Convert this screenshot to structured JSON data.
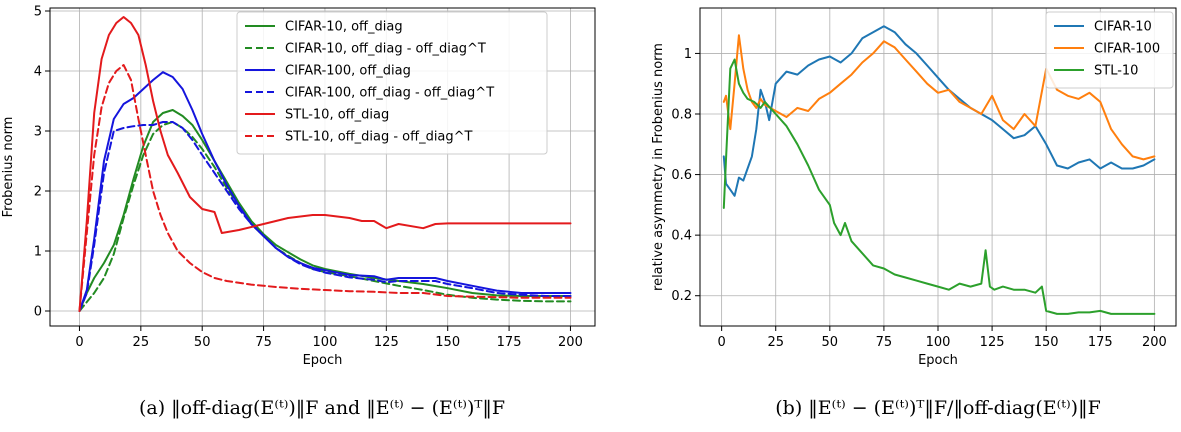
{
  "chart_data": [
    {
      "type": "line",
      "xlabel": "Epoch",
      "ylabel": "Frobenius norm",
      "xlim": [
        -12,
        210
      ],
      "ylim": [
        -0.25,
        5.05
      ],
      "xticks": [
        0,
        25,
        50,
        75,
        100,
        125,
        150,
        175,
        200
      ],
      "yticks": [
        0,
        1,
        2,
        3,
        4,
        5
      ],
      "grid": true,
      "legend_position": "top-right",
      "caption": "(a) ‖off-diag(E⁽ᵗ⁾)‖F and ‖E⁽ᵗ⁾ − (E⁽ᵗ⁾)ᵀ‖F",
      "series": [
        {
          "name": "CIFAR-10, off_diag",
          "color": "#228B22",
          "dash": "solid",
          "x": [
            0,
            3,
            6,
            10,
            14,
            18,
            22,
            26,
            30,
            34,
            38,
            42,
            46,
            50,
            55,
            60,
            65,
            70,
            75,
            80,
            85,
            90,
            95,
            100,
            110,
            120,
            130,
            140,
            150,
            160,
            170,
            180,
            190,
            200
          ],
          "y": [
            0.0,
            0.3,
            0.55,
            0.8,
            1.1,
            1.6,
            2.2,
            2.75,
            3.15,
            3.3,
            3.35,
            3.25,
            3.1,
            2.85,
            2.5,
            2.15,
            1.8,
            1.5,
            1.28,
            1.1,
            0.98,
            0.86,
            0.76,
            0.7,
            0.62,
            0.55,
            0.5,
            0.45,
            0.38,
            0.3,
            0.26,
            0.25,
            0.25,
            0.25
          ]
        },
        {
          "name": "CIFAR-10, off_diag - off_diag^T",
          "color": "#228B22",
          "dash": "dashed",
          "x": [
            0,
            3,
            6,
            10,
            14,
            18,
            22,
            26,
            30,
            34,
            38,
            42,
            46,
            50,
            55,
            60,
            65,
            70,
            75,
            80,
            85,
            90,
            95,
            100,
            110,
            120,
            130,
            140,
            150,
            160,
            170,
            180,
            190,
            200
          ],
          "y": [
            0.0,
            0.15,
            0.3,
            0.55,
            0.95,
            1.55,
            2.1,
            2.6,
            2.95,
            3.1,
            3.15,
            3.05,
            2.9,
            2.7,
            2.4,
            2.05,
            1.75,
            1.45,
            1.25,
            1.05,
            0.92,
            0.8,
            0.7,
            0.65,
            0.58,
            0.5,
            0.42,
            0.35,
            0.27,
            0.22,
            0.19,
            0.17,
            0.16,
            0.16
          ]
        },
        {
          "name": "CIFAR-100, off_diag",
          "color": "#1515DD",
          "dash": "solid",
          "x": [
            0,
            3,
            6,
            10,
            14,
            18,
            22,
            26,
            30,
            34,
            38,
            42,
            46,
            50,
            55,
            60,
            65,
            70,
            75,
            80,
            85,
            90,
            95,
            100,
            110,
            120,
            125,
            130,
            140,
            145,
            150,
            160,
            170,
            180,
            190,
            200
          ],
          "y": [
            0.0,
            0.35,
            1.2,
            2.5,
            3.2,
            3.45,
            3.55,
            3.7,
            3.85,
            3.98,
            3.9,
            3.7,
            3.35,
            2.95,
            2.5,
            2.1,
            1.75,
            1.45,
            1.25,
            1.05,
            0.9,
            0.8,
            0.72,
            0.68,
            0.6,
            0.58,
            0.52,
            0.55,
            0.55,
            0.55,
            0.5,
            0.42,
            0.34,
            0.3,
            0.3,
            0.3
          ]
        },
        {
          "name": "CIFAR-100, off_diag - off_diag^T",
          "color": "#1515DD",
          "dash": "dashed",
          "x": [
            0,
            3,
            6,
            10,
            14,
            18,
            22,
            26,
            30,
            34,
            38,
            42,
            46,
            50,
            55,
            60,
            65,
            70,
            75,
            80,
            85,
            90,
            95,
            100,
            110,
            120,
            125,
            130,
            140,
            145,
            150,
            160,
            170,
            180,
            190,
            200
          ],
          "y": [
            0.0,
            0.3,
            1.1,
            2.3,
            3.0,
            3.05,
            3.08,
            3.1,
            3.1,
            3.15,
            3.15,
            3.05,
            2.85,
            2.6,
            2.3,
            2.0,
            1.7,
            1.45,
            1.25,
            1.05,
            0.9,
            0.78,
            0.7,
            0.64,
            0.56,
            0.52,
            0.48,
            0.5,
            0.5,
            0.5,
            0.45,
            0.38,
            0.3,
            0.27,
            0.25,
            0.25
          ]
        },
        {
          "name": "STL-10, off_diag",
          "color": "#E31A1C",
          "dash": "solid",
          "x": [
            0,
            3,
            6,
            9,
            12,
            15,
            18,
            21,
            24,
            27,
            30,
            33,
            36,
            40,
            45,
            50,
            55,
            58,
            65,
            75,
            85,
            95,
            100,
            110,
            115,
            120,
            125,
            130,
            140,
            145,
            150,
            160,
            170,
            180,
            190,
            200
          ],
          "y": [
            0.0,
            1.5,
            3.3,
            4.2,
            4.6,
            4.8,
            4.9,
            4.8,
            4.6,
            4.1,
            3.5,
            3.0,
            2.6,
            2.3,
            1.9,
            1.7,
            1.65,
            1.3,
            1.35,
            1.45,
            1.55,
            1.6,
            1.6,
            1.55,
            1.5,
            1.5,
            1.38,
            1.45,
            1.38,
            1.45,
            1.46,
            1.46,
            1.46,
            1.46,
            1.46,
            1.46
          ]
        },
        {
          "name": "STL-10, off_diag - off_diag^T",
          "color": "#E31A1C",
          "dash": "dashed",
          "x": [
            0,
            3,
            6,
            9,
            12,
            15,
            18,
            21,
            24,
            27,
            30,
            33,
            36,
            40,
            45,
            50,
            55,
            60,
            70,
            80,
            90,
            100,
            110,
            120,
            130,
            140,
            150,
            160,
            170,
            180,
            190,
            200
          ],
          "y": [
            0.0,
            1.3,
            2.6,
            3.4,
            3.8,
            4.0,
            4.1,
            3.85,
            3.2,
            2.6,
            2.0,
            1.6,
            1.3,
            1.0,
            0.8,
            0.65,
            0.55,
            0.5,
            0.44,
            0.4,
            0.37,
            0.35,
            0.33,
            0.32,
            0.3,
            0.3,
            0.25,
            0.24,
            0.23,
            0.22,
            0.22,
            0.22
          ]
        }
      ]
    },
    {
      "type": "line",
      "xlabel": "Epoch",
      "ylabel": "relative asymmetry in Frobenius norm",
      "xlim": [
        -10,
        210
      ],
      "ylim": [
        0.1,
        1.15
      ],
      "xticks": [
        0,
        25,
        50,
        75,
        100,
        125,
        150,
        175,
        200
      ],
      "yticks": [
        0.2,
        0.4,
        0.6,
        0.8,
        1.0
      ],
      "grid": true,
      "legend_position": "top-right",
      "caption": "(b) ‖E⁽ᵗ⁾ − (E⁽ᵗ⁾)ᵀ‖F/‖off-diag(E⁽ᵗ⁾)‖F",
      "series": [
        {
          "name": "CIFAR-10",
          "color": "#1f77b4",
          "dash": "solid",
          "x": [
            1,
            2,
            4,
            6,
            8,
            10,
            12,
            14,
            16,
            18,
            20,
            22,
            25,
            30,
            35,
            40,
            45,
            50,
            55,
            60,
            65,
            70,
            75,
            80,
            85,
            90,
            95,
            100,
            105,
            110,
            115,
            120,
            125,
            130,
            135,
            140,
            145,
            150,
            155,
            160,
            165,
            170,
            175,
            180,
            185,
            190,
            195,
            200
          ],
          "y": [
            0.66,
            0.57,
            0.55,
            0.53,
            0.59,
            0.58,
            0.62,
            0.66,
            0.75,
            0.88,
            0.84,
            0.78,
            0.9,
            0.94,
            0.93,
            0.96,
            0.98,
            0.99,
            0.97,
            1.0,
            1.05,
            1.07,
            1.09,
            1.07,
            1.03,
            1.0,
            0.96,
            0.92,
            0.88,
            0.85,
            0.82,
            0.8,
            0.78,
            0.75,
            0.72,
            0.73,
            0.76,
            0.7,
            0.63,
            0.62,
            0.64,
            0.65,
            0.62,
            0.64,
            0.62,
            0.62,
            0.63,
            0.65
          ]
        },
        {
          "name": "CIFAR-100",
          "color": "#ff7f0e",
          "dash": "solid",
          "x": [
            1,
            2,
            4,
            6,
            8,
            10,
            12,
            14,
            16,
            18,
            20,
            25,
            30,
            35,
            40,
            45,
            50,
            55,
            60,
            65,
            70,
            75,
            80,
            85,
            90,
            95,
            100,
            105,
            110,
            115,
            120,
            125,
            130,
            135,
            140,
            145,
            150,
            155,
            160,
            165,
            170,
            175,
            180,
            185,
            190,
            195,
            200
          ],
          "y": [
            0.84,
            0.86,
            0.75,
            0.9,
            1.06,
            0.95,
            0.88,
            0.84,
            0.82,
            0.85,
            0.83,
            0.81,
            0.79,
            0.82,
            0.81,
            0.85,
            0.87,
            0.9,
            0.93,
            0.97,
            1.0,
            1.04,
            1.02,
            0.98,
            0.94,
            0.9,
            0.87,
            0.88,
            0.84,
            0.82,
            0.8,
            0.86,
            0.78,
            0.75,
            0.8,
            0.76,
            0.95,
            0.88,
            0.86,
            0.85,
            0.87,
            0.84,
            0.75,
            0.7,
            0.66,
            0.65,
            0.66
          ]
        },
        {
          "name": "STL-10",
          "color": "#2ca02c",
          "dash": "solid",
          "x": [
            1,
            2,
            4,
            6,
            8,
            10,
            12,
            15,
            18,
            20,
            25,
            30,
            35,
            40,
            45,
            50,
            52,
            55,
            57,
            60,
            65,
            70,
            75,
            80,
            85,
            90,
            95,
            100,
            105,
            110,
            115,
            120,
            122,
            124,
            126,
            130,
            135,
            140,
            145,
            148,
            150,
            155,
            160,
            165,
            170,
            175,
            180,
            185,
            190,
            195,
            200
          ],
          "y": [
            0.49,
            0.65,
            0.95,
            0.98,
            0.9,
            0.87,
            0.85,
            0.84,
            0.82,
            0.84,
            0.8,
            0.76,
            0.7,
            0.63,
            0.55,
            0.5,
            0.44,
            0.4,
            0.44,
            0.38,
            0.34,
            0.3,
            0.29,
            0.27,
            0.26,
            0.25,
            0.24,
            0.23,
            0.22,
            0.24,
            0.23,
            0.24,
            0.35,
            0.23,
            0.22,
            0.23,
            0.22,
            0.22,
            0.21,
            0.23,
            0.15,
            0.14,
            0.14,
            0.145,
            0.145,
            0.15,
            0.14,
            0.14,
            0.14,
            0.14,
            0.14
          ]
        }
      ]
    }
  ]
}
